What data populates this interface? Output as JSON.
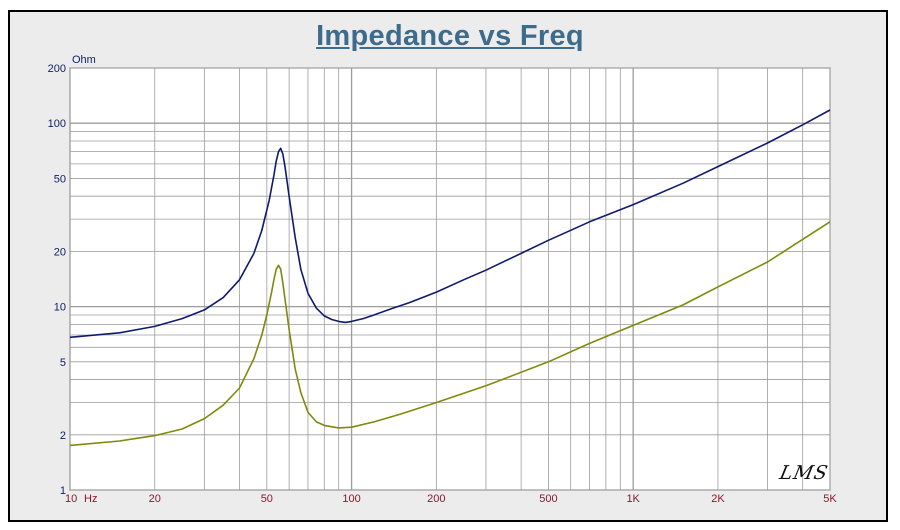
{
  "colors": {
    "title": "#3d6b8c",
    "axis_text": "#0c1f66",
    "tick_text": "#8a1a2a",
    "grid": "#9c9c9c",
    "plot_bg": "#ffffff",
    "series_1": "#0f1a6e",
    "series_2": "#7f8a0a"
  },
  "watermark": "LMS",
  "chart_data": {
    "type": "line",
    "title": "Impedance vs Freq",
    "ylabel": "Ohm",
    "xlabel": "",
    "x_unit": "Hz",
    "xscale": "log",
    "yscale": "log",
    "xlim": [
      10,
      5000
    ],
    "ylim": [
      1,
      200
    ],
    "grid": true,
    "x_ticks": [
      {
        "value": 10,
        "label": "10"
      },
      {
        "value": 20,
        "label": "20"
      },
      {
        "value": 50,
        "label": "50"
      },
      {
        "value": 100,
        "label": "100"
      },
      {
        "value": 200,
        "label": "200"
      },
      {
        "value": 500,
        "label": "500"
      },
      {
        "value": 1000,
        "label": "1K"
      },
      {
        "value": 2000,
        "label": "2K"
      },
      {
        "value": 5000,
        "label": "5K"
      }
    ],
    "y_ticks": [
      {
        "value": 1,
        "label": "1"
      },
      {
        "value": 2,
        "label": "2"
      },
      {
        "value": 5,
        "label": "5"
      },
      {
        "value": 10,
        "label": "10"
      },
      {
        "value": 20,
        "label": "20"
      },
      {
        "value": 50,
        "label": "50"
      },
      {
        "value": 100,
        "label": "100"
      },
      {
        "value": 200,
        "label": "200"
      }
    ],
    "series": [
      {
        "x": [
          10,
          15,
          20,
          25,
          30,
          35,
          40,
          45,
          48,
          51,
          53,
          54,
          55,
          56,
          57,
          58,
          60,
          63,
          66,
          70,
          75,
          80,
          85,
          90,
          95,
          100,
          110,
          120,
          140,
          160,
          200,
          250,
          300,
          400,
          500,
          700,
          1000,
          1500,
          2000,
          3000,
          4000,
          5000
        ],
        "y": [
          6.8,
          7.2,
          7.8,
          8.6,
          9.6,
          11.2,
          14.0,
          19.5,
          26.0,
          38.0,
          52.0,
          62.0,
          70.0,
          73.0,
          68.0,
          58.0,
          40.0,
          24.0,
          16.0,
          11.8,
          9.8,
          8.9,
          8.5,
          8.3,
          8.2,
          8.3,
          8.6,
          9.0,
          9.8,
          10.5,
          12.0,
          14.0,
          15.8,
          19.5,
          23.0,
          29.0,
          36.0,
          47.0,
          58.0,
          78.0,
          98.0,
          118.0
        ]
      },
      {
        "x": [
          10,
          15,
          20,
          25,
          30,
          35,
          40,
          45,
          48,
          50,
          52,
          53,
          54,
          55,
          56,
          57,
          58,
          60,
          63,
          66,
          70,
          75,
          80,
          90,
          100,
          120,
          150,
          200,
          300,
          500,
          700,
          1000,
          1500,
          2000,
          3000,
          5000
        ],
        "y": [
          1.75,
          1.85,
          1.98,
          2.15,
          2.45,
          2.9,
          3.6,
          5.2,
          7.0,
          9.0,
          12.0,
          14.0,
          16.0,
          16.8,
          16.0,
          13.5,
          11.0,
          7.5,
          4.6,
          3.4,
          2.65,
          2.35,
          2.25,
          2.18,
          2.2,
          2.35,
          2.6,
          3.0,
          3.7,
          5.0,
          6.3,
          7.9,
          10.2,
          12.8,
          17.5,
          29.0
        ]
      }
    ]
  }
}
